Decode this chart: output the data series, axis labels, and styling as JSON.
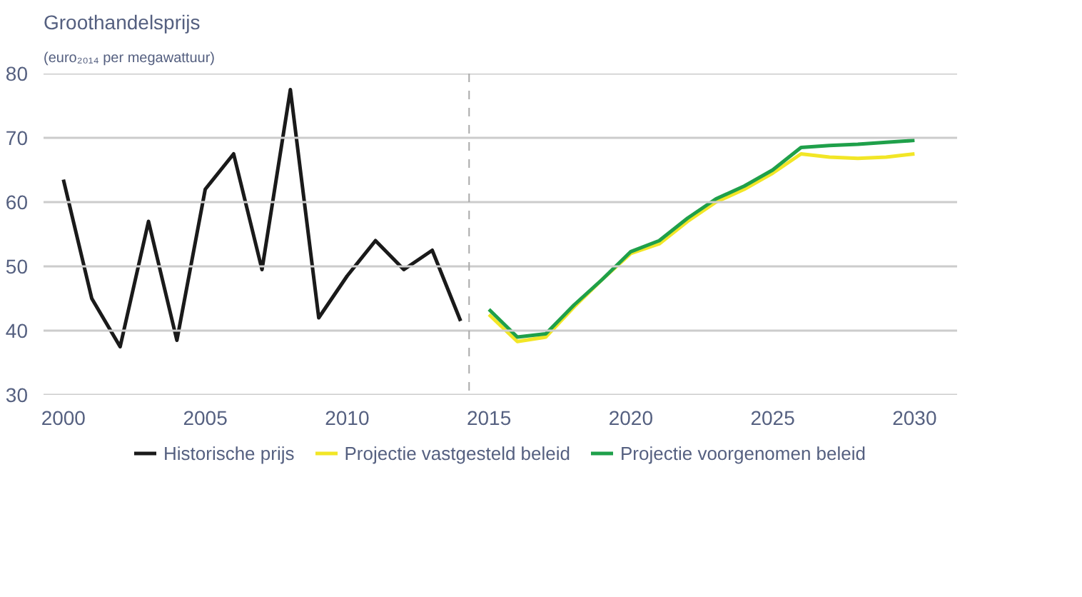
{
  "chart_data": {
    "type": "line",
    "title": "Groothandelsprijs",
    "subtitle": "(euro₂₀₁₄ per megawattuur)",
    "xlim": [
      1999.3,
      2031.5
    ],
    "xticks": [
      2000,
      2005,
      2010,
      2015,
      2020,
      2025,
      2030
    ],
    "ylim": [
      30,
      80
    ],
    "yticks": [
      30,
      40,
      50,
      60,
      70,
      80
    ],
    "grid": "y",
    "legend": "bottom",
    "line_style": "solid",
    "marker": "none",
    "ref_lines": [
      {
        "axis": "x",
        "value": 2014.3,
        "label": null,
        "color": "#aaaaaa",
        "line_style": "dashed"
      }
    ],
    "series": [
      {
        "name": "Historische prijs",
        "color": "#1a1a1a",
        "x": [
          2000,
          2001,
          2002,
          2003,
          2004,
          2005,
          2006,
          2007,
          2008,
          2009,
          2010,
          2011,
          2012,
          2013,
          2014
        ],
        "values": [
          63.5,
          45,
          37.5,
          57,
          38.5,
          62,
          67.5,
          49.5,
          77.5,
          42,
          48.5,
          54,
          49.5,
          52.5,
          41.5
        ]
      },
      {
        "name": "Projectie vastgesteld beleid",
        "color": "#f2e626",
        "x": [
          2015,
          2016,
          2017,
          2018,
          2019,
          2020,
          2021,
          2022,
          2023,
          2024,
          2025,
          2026,
          2027,
          2028,
          2029,
          2030
        ],
        "values": [
          42.5,
          38.3,
          39,
          43.7,
          48,
          52,
          53.5,
          57,
          60,
          62,
          64.5,
          67.5,
          67,
          66.8,
          67,
          67.5
        ]
      },
      {
        "name": "Projectie voorgenomen beleid",
        "color": "#1fa04a",
        "x": [
          2015,
          2016,
          2017,
          2018,
          2019,
          2020,
          2021,
          2022,
          2023,
          2024,
          2025,
          2026,
          2027,
          2028,
          2029,
          2030
        ],
        "values": [
          43.3,
          39,
          39.5,
          44,
          48,
          52.3,
          54,
          57.5,
          60.5,
          62.5,
          65,
          68.5,
          68.8,
          69,
          69.3,
          69.6
        ]
      }
    ]
  }
}
